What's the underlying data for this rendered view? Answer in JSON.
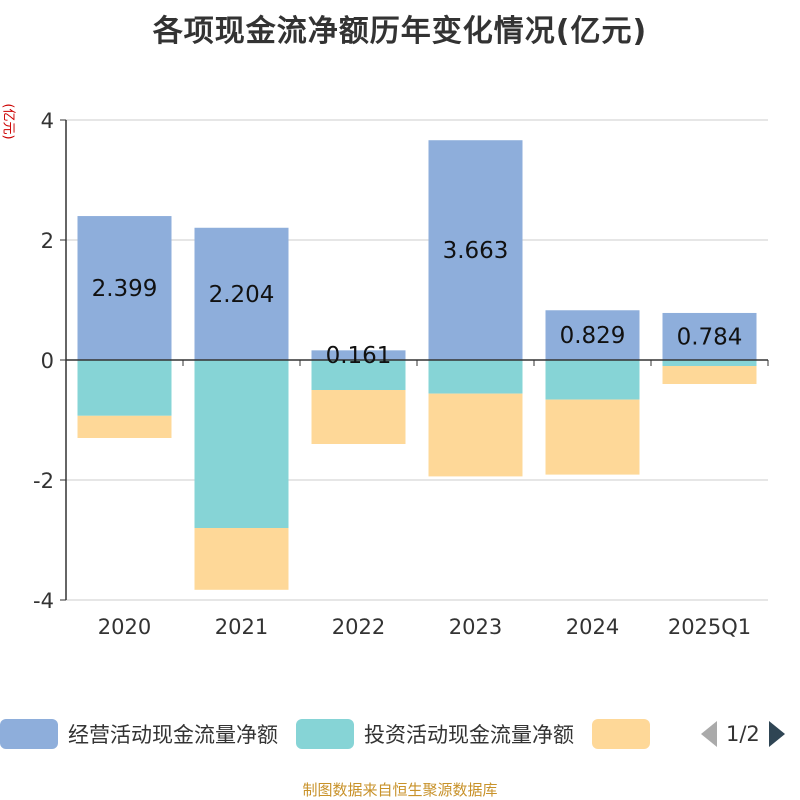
{
  "chart_data": {
    "type": "bar",
    "stacked": true,
    "title": "各项现金流净额历年变化情况(亿元)",
    "ylabel": "(亿元)",
    "categories": [
      "2020",
      "2021",
      "2022",
      "2023",
      "2024",
      "2025Q1"
    ],
    "ylim": [
      -4,
      4
    ],
    "yticks": [
      4,
      2,
      0,
      -2,
      -4
    ],
    "grid": true,
    "legend_position": "bottom",
    "series": [
      {
        "name": "经营活动现金流量净额",
        "color": "#8eaedb",
        "values": [
          2.399,
          2.204,
          0.161,
          3.663,
          0.829,
          0.784
        ],
        "labels": [
          "2.399",
          "2.204",
          "0.161",
          "3.663",
          "0.829",
          "0.784"
        ]
      },
      {
        "name": "投资活动现金流量净额",
        "color": "#86d4d6",
        "values": [
          -0.93,
          -2.8,
          -0.5,
          -0.56,
          -0.66,
          -0.1
        ]
      },
      {
        "name": "",
        "color": "#fed898",
        "values": [
          -0.37,
          -1.03,
          -0.9,
          -1.38,
          -1.25,
          -0.3
        ]
      }
    ]
  },
  "legend": {
    "items": [
      {
        "label": "经营活动现金流量净额",
        "color": "#8eaedb"
      },
      {
        "label": "投资活动现金流量净额",
        "color": "#86d4d6"
      },
      {
        "label": "",
        "color": "#fed898"
      }
    ],
    "page_indicator": "1/2",
    "prev_icon": "chevron-left-icon",
    "next_icon": "chevron-right-icon"
  },
  "footer": {
    "source": "制图数据来自恒生聚源数据库"
  }
}
